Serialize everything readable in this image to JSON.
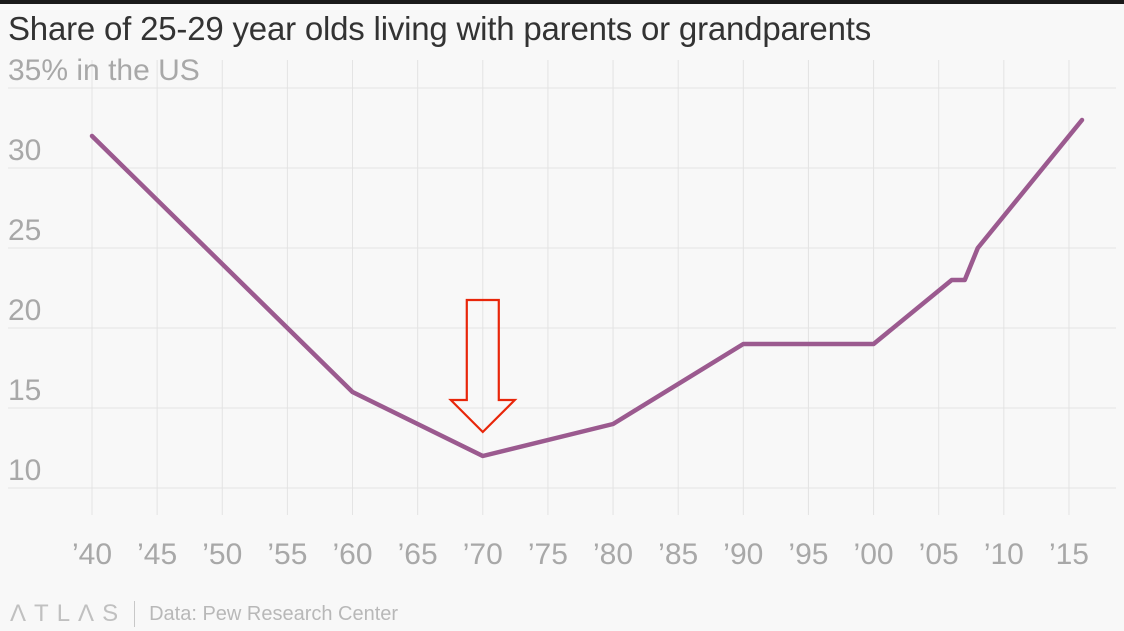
{
  "header": {
    "title": "Share of 25-29 year olds living with parents or grandparents"
  },
  "footer": {
    "brand": "ΛTLΛS",
    "source": "Data: Pew Research Center"
  },
  "colors": {
    "line": "#9b5a8f",
    "arrow": "#e8260a",
    "grid": "#e3e3e3",
    "tick_text": "#a8a8a8"
  },
  "chart_data": {
    "type": "line",
    "title": "Share of 25-29 year olds living with parents or grandparents",
    "ylabel": "",
    "xlabel": "",
    "xlim": [
      1940,
      2016
    ],
    "ylim": [
      10,
      35
    ],
    "y_ticks": [
      35,
      30,
      25,
      20,
      15,
      10
    ],
    "y_tick_labels": [
      "35% in the US",
      "30",
      "25",
      "20",
      "15",
      "10"
    ],
    "x_ticks": [
      1940,
      1945,
      1950,
      1955,
      1960,
      1965,
      1970,
      1975,
      1980,
      1985,
      1990,
      1995,
      2000,
      2005,
      2010,
      2015
    ],
    "x_tick_labels": [
      "’40",
      "’45",
      "’50",
      "’55",
      "’60",
      "’65",
      "’70",
      "’75",
      "’80",
      "’85",
      "’90",
      "’95",
      "’00",
      "’05",
      "’10",
      "’15"
    ],
    "grid": true,
    "x": [
      1940,
      1960,
      1970,
      1980,
      1990,
      2000,
      2006,
      2007,
      2008,
      2016
    ],
    "series": [
      {
        "values": [
          32,
          16,
          12,
          14,
          19,
          19,
          23,
          23,
          25,
          33
        ]
      }
    ],
    "annotations": [
      {
        "type": "arrow",
        "direction": "down",
        "points_to_x": 1970,
        "points_to_y": 13.5
      }
    ]
  }
}
